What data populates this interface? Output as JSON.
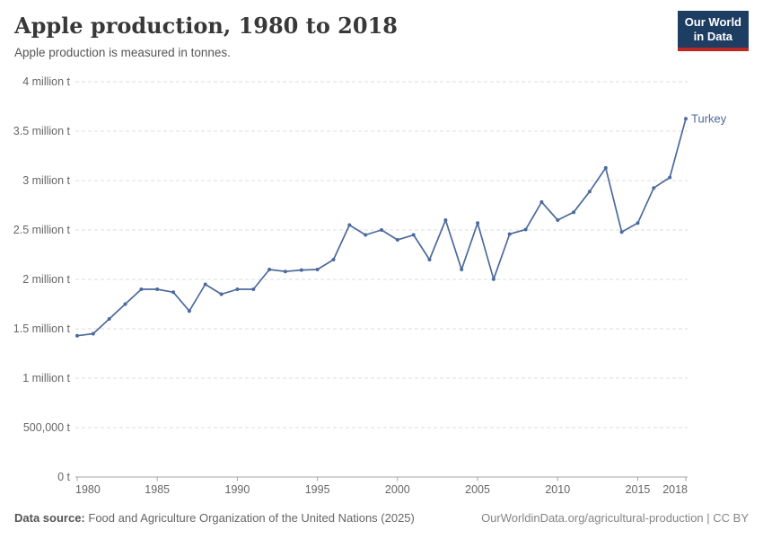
{
  "header": {
    "title": "Apple production, 1980 to 2018",
    "subtitle": "Apple production is measured in tonnes."
  },
  "logo": {
    "line1": "Our World",
    "line2": "in Data"
  },
  "chart_data": {
    "type": "line",
    "title": "Apple production, 1980 to 2018",
    "xlabel": "",
    "ylabel": "",
    "xlim": [
      1980,
      2018
    ],
    "ylim": [
      0,
      4000000
    ],
    "grid": "dashed horizontal gridlines",
    "legend": "label at end of line",
    "x_ticks": [
      1980,
      1985,
      1990,
      1995,
      2000,
      2005,
      2010,
      2015,
      2018
    ],
    "y_ticks": [
      {
        "value": 0,
        "label": "0 t"
      },
      {
        "value": 500000,
        "label": "500,000 t"
      },
      {
        "value": 1000000,
        "label": "1 million t"
      },
      {
        "value": 1500000,
        "label": "1.5 million t"
      },
      {
        "value": 2000000,
        "label": "2 million t"
      },
      {
        "value": 2500000,
        "label": "2.5 million t"
      },
      {
        "value": 3000000,
        "label": "3 million t"
      },
      {
        "value": 3500000,
        "label": "3.5 million t"
      },
      {
        "value": 4000000,
        "label": "4 million t"
      }
    ],
    "series": [
      {
        "name": "Turkey",
        "color": "#4C6A9C",
        "x": [
          1980,
          1981,
          1982,
          1983,
          1984,
          1985,
          1986,
          1987,
          1988,
          1989,
          1990,
          1991,
          1992,
          1993,
          1994,
          1995,
          1996,
          1997,
          1998,
          1999,
          2000,
          2001,
          2002,
          2003,
          2004,
          2005,
          2006,
          2007,
          2008,
          2009,
          2010,
          2011,
          2012,
          2013,
          2014,
          2015,
          2016,
          2017,
          2018
        ],
        "values": [
          1430000,
          1450000,
          1600000,
          1750000,
          1900000,
          1900000,
          1870000,
          1680000,
          1950000,
          1850000,
          1900000,
          1900000,
          2100000,
          2080000,
          2095000,
          2100000,
          2200000,
          2550000,
          2450000,
          2500000,
          2400000,
          2450000,
          2200000,
          2600000,
          2100000,
          2570000,
          2002033,
          2457845,
          2504494,
          2782365,
          2600000,
          2680075,
          2888985,
          3128450,
          2480444,
          2569759,
          2925828,
          3032164,
          3625960
        ]
      }
    ]
  },
  "footer": {
    "datasource_label": "Data source:",
    "datasource_text": "Food and Agriculture Organization of the United Nations (2025)",
    "link": "OurWorldinData.org/agricultural-production | CC BY"
  },
  "colors": {
    "series": "#4C6A9C",
    "gridline": "#dcdcdc",
    "axis": "#a5a5a5",
    "tick_text": "#666666"
  }
}
